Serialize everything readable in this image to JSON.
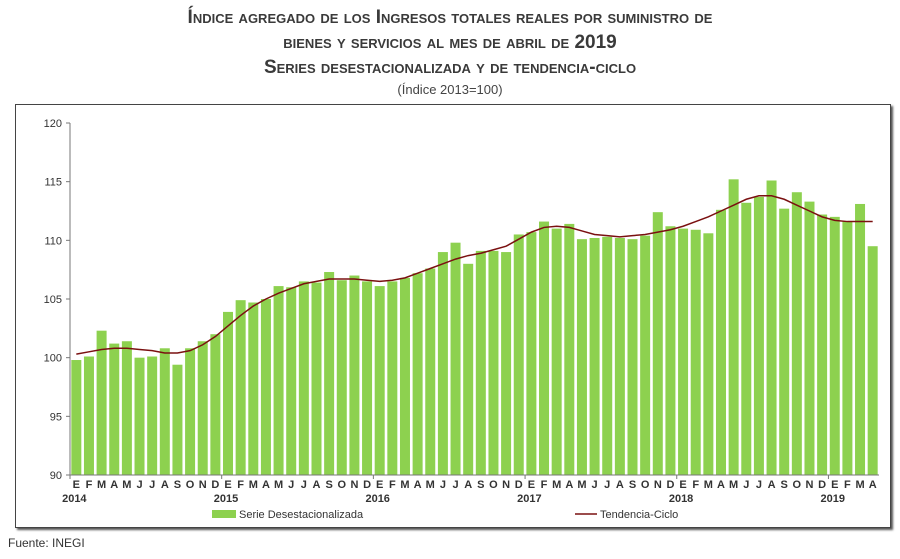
{
  "title_lines": [
    "Índice agregado de los Ingresos totales reales por suministro de",
    "bienes y servicios al mes de abril de 2019",
    "Series desestacionalizada y de tendencia-ciclo"
  ],
  "subtitle": "(Índice 2013=100)",
  "source": "Fuente: INEGI",
  "chart_data": {
    "type": "bar",
    "ylim": [
      90,
      120
    ],
    "yticks": [
      90,
      95,
      100,
      105,
      110,
      115,
      120
    ],
    "grid": false,
    "legend_position": "bottom",
    "month_labels": [
      "E",
      "F",
      "M",
      "A",
      "M",
      "J",
      "J",
      "A",
      "S",
      "O",
      "N",
      "D"
    ],
    "years": [
      "2014",
      "2015",
      "2016",
      "2017",
      "2018",
      "2019"
    ],
    "colors": {
      "bars": "#8dd14f",
      "trend": "#7a1010"
    },
    "series": [
      {
        "name": "Serie Desestacionalizada",
        "type": "bar",
        "values": [
          99.8,
          100.1,
          102.3,
          101.2,
          101.4,
          100.0,
          100.1,
          100.8,
          99.4,
          100.8,
          101.4,
          102.0,
          103.9,
          104.9,
          104.7,
          105.0,
          106.1,
          106.0,
          106.5,
          106.4,
          107.3,
          106.6,
          107.0,
          106.5,
          106.1,
          106.5,
          106.8,
          107.2,
          107.6,
          109.0,
          109.8,
          108.0,
          109.1,
          109.1,
          109.0,
          110.5,
          110.7,
          111.6,
          111.0,
          111.4,
          110.1,
          110.2,
          110.3,
          110.2,
          110.1,
          110.4,
          112.4,
          111.2,
          111.0,
          110.9,
          110.6,
          112.6,
          115.2,
          113.2,
          113.7,
          115.1,
          112.7,
          114.1,
          113.3,
          112.2,
          112.0,
          111.6,
          113.1,
          109.5
        ]
      },
      {
        "name": "Tendencia-Ciclo",
        "type": "line",
        "values": [
          100.3,
          100.5,
          100.7,
          100.8,
          100.8,
          100.7,
          100.6,
          100.4,
          100.4,
          100.6,
          101.1,
          101.8,
          102.7,
          103.6,
          104.4,
          105.0,
          105.5,
          105.9,
          106.3,
          106.5,
          106.7,
          106.7,
          106.7,
          106.6,
          106.5,
          106.6,
          106.8,
          107.2,
          107.6,
          108.0,
          108.4,
          108.7,
          108.9,
          109.2,
          109.5,
          110.1,
          110.7,
          111.1,
          111.2,
          111.1,
          110.8,
          110.5,
          110.4,
          110.3,
          110.4,
          110.5,
          110.7,
          110.9,
          111.2,
          111.6,
          112.0,
          112.5,
          113.0,
          113.5,
          113.8,
          113.8,
          113.5,
          113.0,
          112.5,
          112.0,
          111.7,
          111.6,
          111.6,
          111.6
        ]
      }
    ]
  }
}
